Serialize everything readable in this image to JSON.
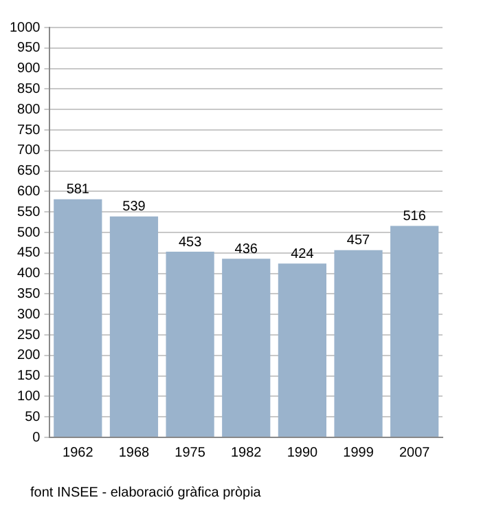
{
  "chart_data": {
    "type": "bar",
    "categories": [
      "1962",
      "1968",
      "1975",
      "1982",
      "1990",
      "1999",
      "2007"
    ],
    "values": [
      581,
      539,
      453,
      436,
      424,
      457,
      516
    ],
    "color": "#9ab3cc",
    "ylim": [
      0,
      1000
    ],
    "yticks": [
      0,
      50,
      100,
      150,
      200,
      250,
      300,
      350,
      400,
      450,
      500,
      550,
      600,
      650,
      700,
      750,
      800,
      850,
      900,
      950,
      1000
    ],
    "grid": "y",
    "legend": false,
    "data_labels": true,
    "annotations": [
      "font INSEE - elaboració gràfica pròpia"
    ]
  }
}
